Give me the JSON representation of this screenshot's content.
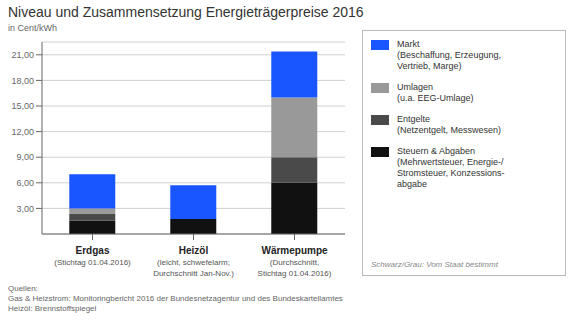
{
  "chart_data": {
    "type": "bar",
    "title": "Niveau und Zusammensetzung Energieträgerpreise 2016",
    "ylabel": "in Cent/kWh",
    "categories": [
      "Erdgas\n(Stichtag 01.04.2016)",
      "Heizöl\n(leicht, schwefelarm;\nDurchschnitt Jan-Nov.)",
      "Wärmepumpe\n(Durchschnitt,\nStichtag 01.04.2016)"
    ],
    "series": [
      {
        "name": "Steuern & Abgaben\n(Mehrwertsteuer, Energie-/\nStromsteuer, Konzessions-\nabgabe",
        "color": "#111111",
        "values": [
          1.55,
          1.75,
          6.0
        ]
      },
      {
        "name": "Entgelte\n(Netzentgelt, Messwesen)",
        "color": "#4a4a4a",
        "values": [
          0.85,
          0.0,
          3.0
        ]
      },
      {
        "name": "Umlagen\n(u.a. EEG-Umlage)",
        "color": "#999999",
        "values": [
          0.6,
          0.0,
          7.0
        ]
      },
      {
        "name": "Markt\n(Beschaffung, Erzeugung,\nVertrieb, Marge)",
        "color": "#1a56ff",
        "values": [
          4.0,
          3.95,
          5.4
        ]
      }
    ],
    "stacked": true,
    "ylim": [
      0,
      22.5
    ],
    "yticks": [
      {
        "value": 3.0,
        "label": "3,00"
      },
      {
        "value": 6.0,
        "label": "6,00"
      },
      {
        "value": 9.0,
        "label": "9,00"
      },
      {
        "value": 12.0,
        "label": "12,00"
      },
      {
        "value": 15.0,
        "label": "15,00"
      },
      {
        "value": 18.0,
        "label": "18,00"
      },
      {
        "value": 21.0,
        "label": "21,00"
      }
    ],
    "grid": true,
    "legend": "right",
    "annotations": [
      "Schwarz/Grau: Vom Staat bestimmt"
    ],
    "source": "Quellen:\nGas & Heizstrom: Monitoringbericht 2016 der Bundesnetzagentur und des Bundeskartellamtes\nHeizöl: Brennstoffspiegel"
  }
}
